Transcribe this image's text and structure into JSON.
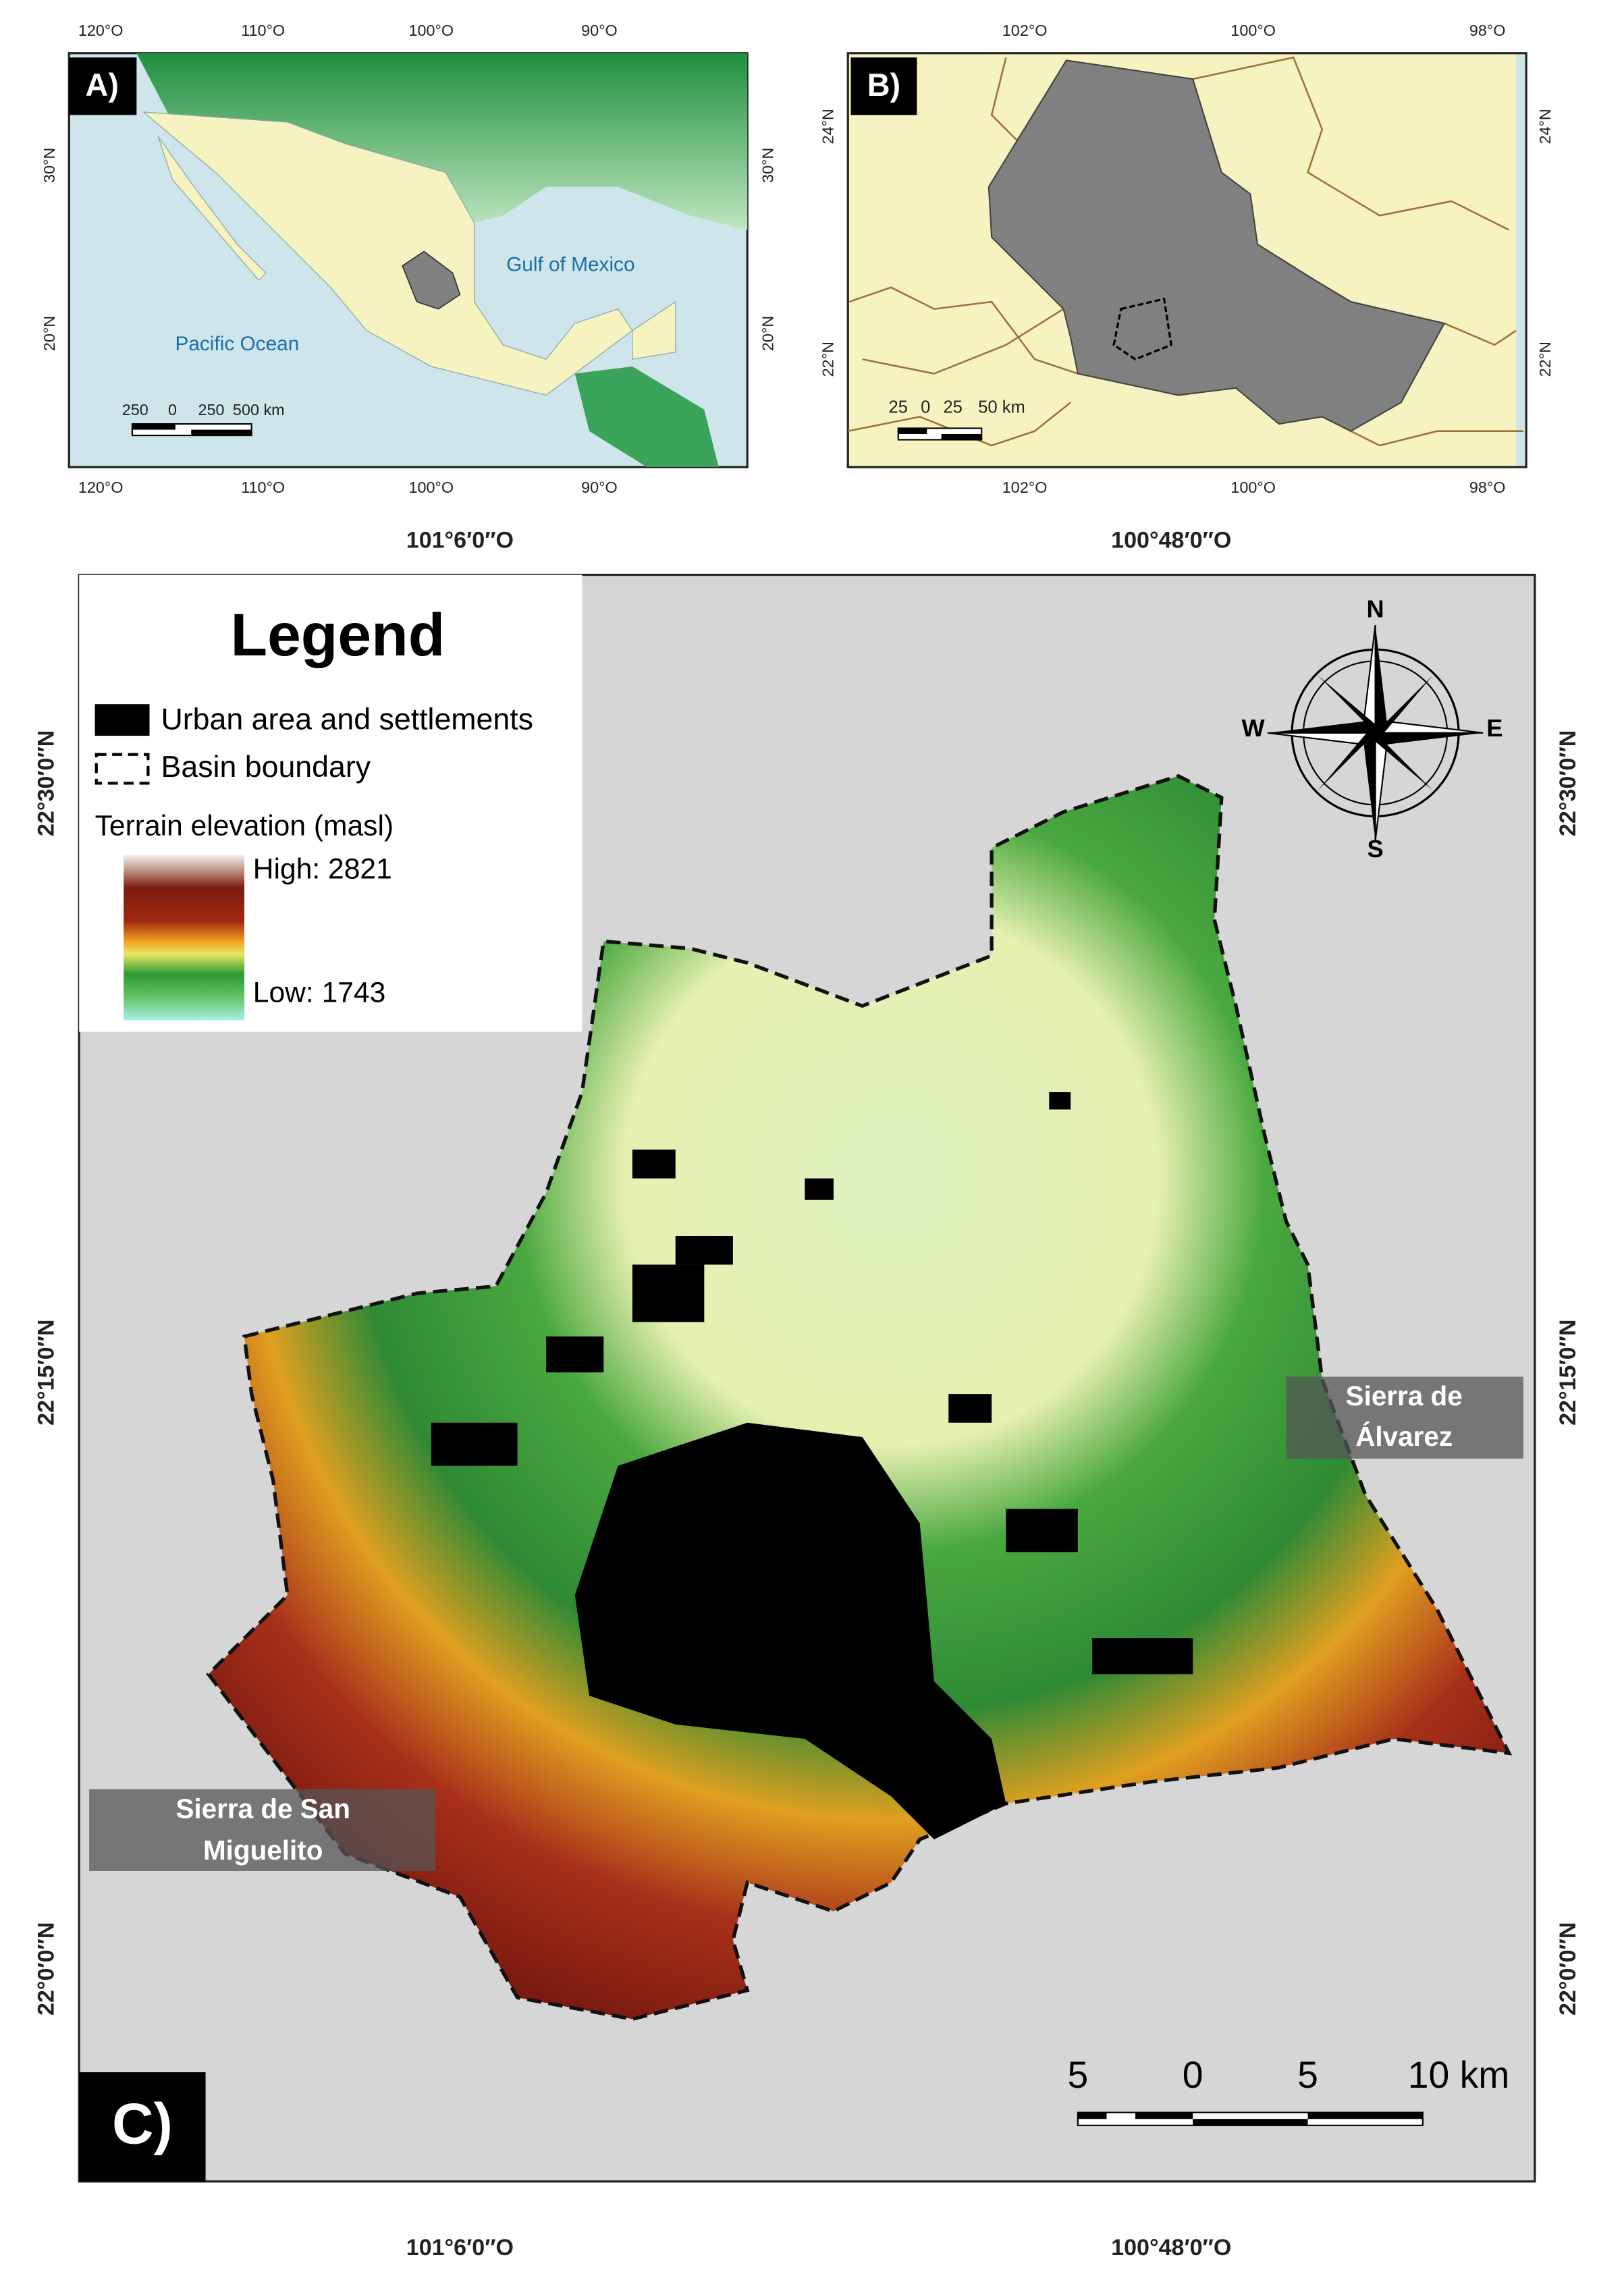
{
  "panel_a": {
    "label": "A)",
    "x_ticks": [
      "120°O",
      "110°O",
      "100°O",
      "90°O"
    ],
    "y_ticks": [
      "30°N",
      "20°N"
    ],
    "water_labels": [
      "Gulf of Mexico",
      "Pacific Ocean"
    ],
    "scale": [
      "250",
      "0",
      "250",
      "500 km"
    ]
  },
  "panel_b": {
    "label": "B)",
    "x_ticks": [
      "102°O",
      "100°O",
      "98°O"
    ],
    "y_ticks": [
      "24°N",
      "22°N"
    ],
    "scale": [
      "25",
      "0",
      "25",
      "50 km"
    ]
  },
  "panel_c": {
    "label": "C)",
    "x_ticks": [
      "101°6′0″O",
      "100°48′0″O"
    ],
    "y_ticks": [
      "22°30′0″N",
      "22°15′0″N",
      "22°0′0″N"
    ],
    "legend": {
      "title": "Legend",
      "items": [
        "Urban area and settlements",
        "Basin boundary"
      ],
      "elevation_title": "Terrain elevation (masl)",
      "high": "High: 2821",
      "low": "Low: 1743"
    },
    "compass": {
      "n": "N",
      "e": "E",
      "s": "S",
      "w": "W"
    },
    "places": [
      [
        "Sierra de",
        "Álvarez"
      ],
      [
        "Sierra de San",
        "Miguelito"
      ]
    ],
    "scale": [
      "5",
      "0",
      "5",
      "10 km"
    ]
  }
}
